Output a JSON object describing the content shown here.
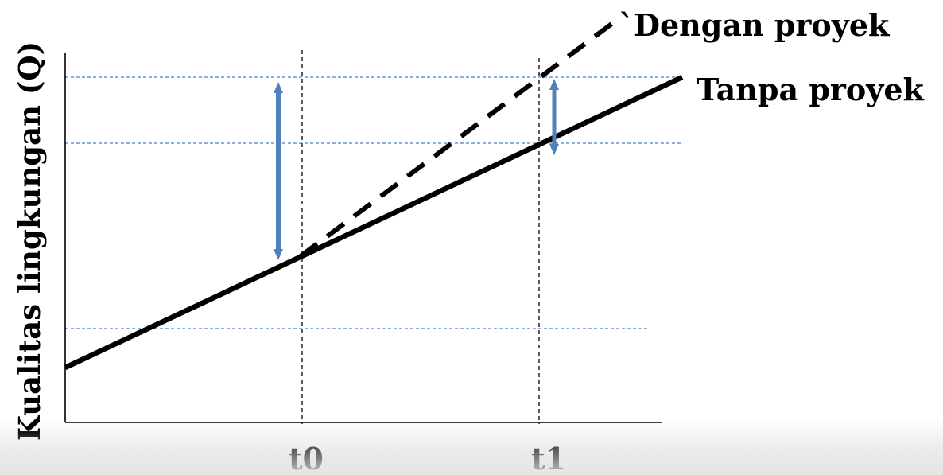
{
  "axis": {
    "ylabel": "Kualitas lingkungan (Q)",
    "ticks": [
      "t0",
      "t1"
    ]
  },
  "lines": {
    "with_project": "`Dengan proyek",
    "without_project": "Tanpa proyek"
  },
  "colors": {
    "line": "#000000",
    "guide": "#4f81bd",
    "arrow": "#4f81bd",
    "tick_guide": "#000000"
  },
  "icons": {
    "arrow": "double-headed-arrow-icon"
  }
}
